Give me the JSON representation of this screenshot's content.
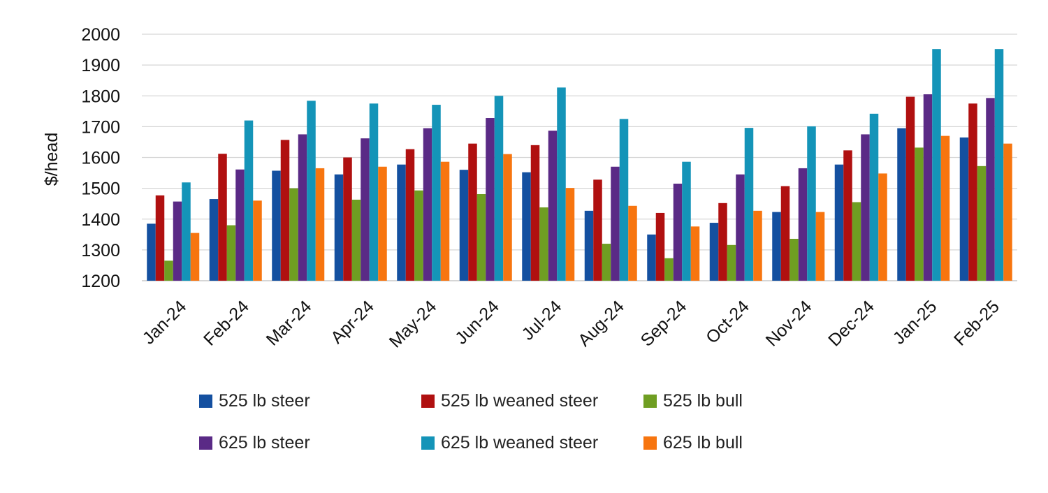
{
  "chart_data": {
    "type": "bar",
    "title": "",
    "xlabel": "",
    "ylabel": "$/head",
    "ylim": [
      1200,
      2000
    ],
    "yticks": [
      1200,
      1300,
      1400,
      1500,
      1600,
      1700,
      1800,
      1900,
      2000
    ],
    "grid": true,
    "legend_position": "bottom",
    "categories": [
      "Jan-24",
      "Feb-24",
      "Mar-24",
      "Apr-24",
      "May-24",
      "Jun-24",
      "Jul-24",
      "Aug-24",
      "Sep-24",
      "Oct-24",
      "Nov-24",
      "Dec-24",
      "Jan-25",
      "Feb-25"
    ],
    "series": [
      {
        "name": "525 lb steer",
        "color": "#1450a0",
        "values": [
          1385,
          1465,
          1557,
          1545,
          1577,
          1560,
          1552,
          1427,
          1350,
          1388,
          1423,
          1577,
          1695,
          1665
        ]
      },
      {
        "name": "525 lb weaned steer",
        "color": "#b01010",
        "values": [
          1477,
          1612,
          1657,
          1600,
          1627,
          1645,
          1640,
          1528,
          1420,
          1452,
          1507,
          1623,
          1797,
          1775
        ]
      },
      {
        "name": "525 lb bull",
        "color": "#6f9e22",
        "values": [
          1265,
          1380,
          1500,
          1463,
          1493,
          1481,
          1438,
          1320,
          1273,
          1316,
          1336,
          1455,
          1632,
          1572
        ]
      },
      {
        "name": "625 lb steer",
        "color": "#5a2a86",
        "values": [
          1457,
          1561,
          1675,
          1662,
          1695,
          1728,
          1687,
          1570,
          1515,
          1545,
          1565,
          1675,
          1805,
          1793
        ]
      },
      {
        "name": "625 lb weaned steer",
        "color": "#1494b8",
        "values": [
          1519,
          1720,
          1784,
          1775,
          1771,
          1800,
          1827,
          1725,
          1586,
          1696,
          1701,
          1742,
          1952,
          1952
        ]
      },
      {
        "name": "625 lb bull",
        "color": "#f7750f",
        "values": [
          1355,
          1460,
          1565,
          1570,
          1586,
          1611,
          1501,
          1443,
          1376,
          1427,
          1423,
          1548,
          1670,
          1645
        ]
      }
    ]
  }
}
